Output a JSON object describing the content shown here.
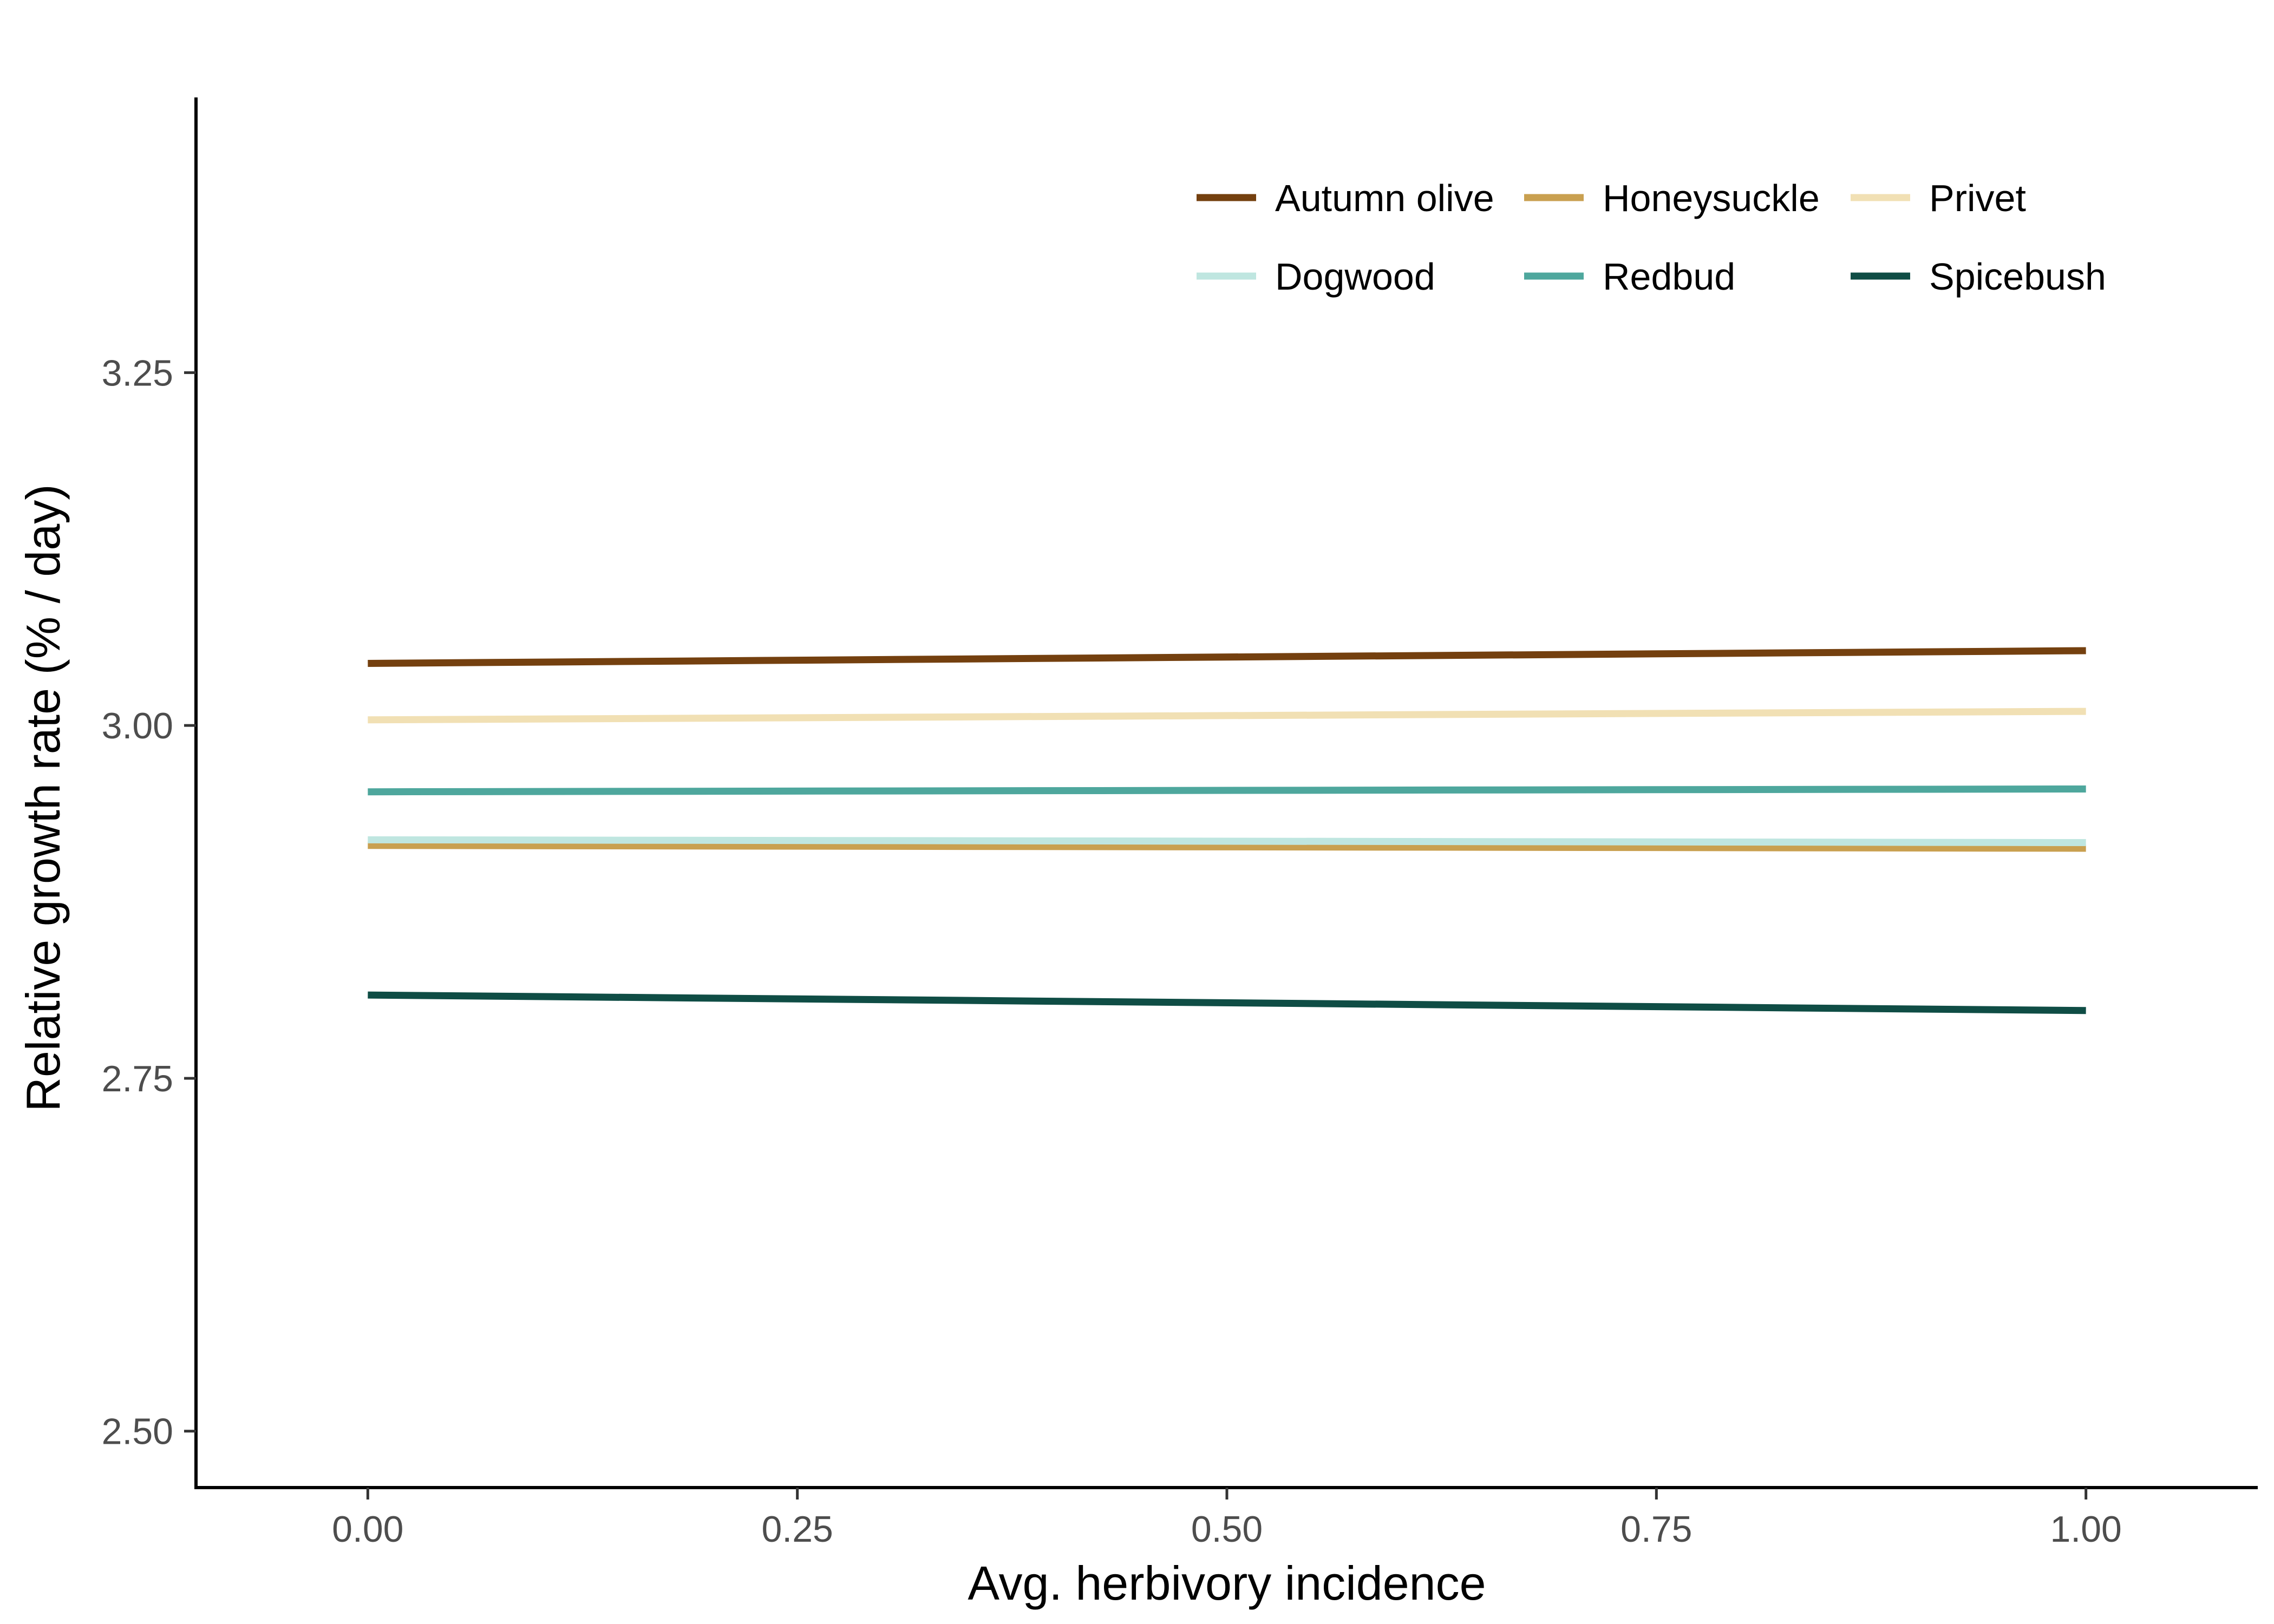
{
  "chart_data": {
    "type": "line",
    "xlabel": "Avg. herbivory incidence",
    "ylabel": "Relative growth rate (% / day)",
    "xlim": [
      -0.1,
      1.1
    ],
    "ylim": [
      2.46,
      3.445
    ],
    "x_ticks": [
      "0.00",
      "0.25",
      "0.50",
      "0.75",
      "1.00"
    ],
    "y_ticks": [
      "2.50",
      "2.75",
      "3.00",
      "3.25"
    ],
    "grid": false,
    "legend_position": "top-right",
    "series": [
      {
        "name": "Autumn olive",
        "color": "#74400f",
        "x": [
          0,
          1
        ],
        "y": [
          3.044,
          3.053
        ]
      },
      {
        "name": "Honeysuckle",
        "color": "#c9a050",
        "x": [
          0,
          1
        ],
        "y": [
          2.915,
          2.913
        ]
      },
      {
        "name": "Privet",
        "color": "#f1e0b4",
        "x": [
          0,
          1
        ],
        "y": [
          3.004,
          3.01
        ]
      },
      {
        "name": "Dogwood",
        "color": "#bfe6e0",
        "x": [
          0,
          1
        ],
        "y": [
          2.919,
          2.917
        ]
      },
      {
        "name": "Redbud",
        "color": "#4ea79d",
        "x": [
          0,
          1
        ],
        "y": [
          2.953,
          2.955
        ]
      },
      {
        "name": "Spicebush",
        "color": "#0f4d45",
        "x": [
          0,
          1
        ],
        "y": [
          2.809,
          2.798
        ]
      }
    ]
  }
}
